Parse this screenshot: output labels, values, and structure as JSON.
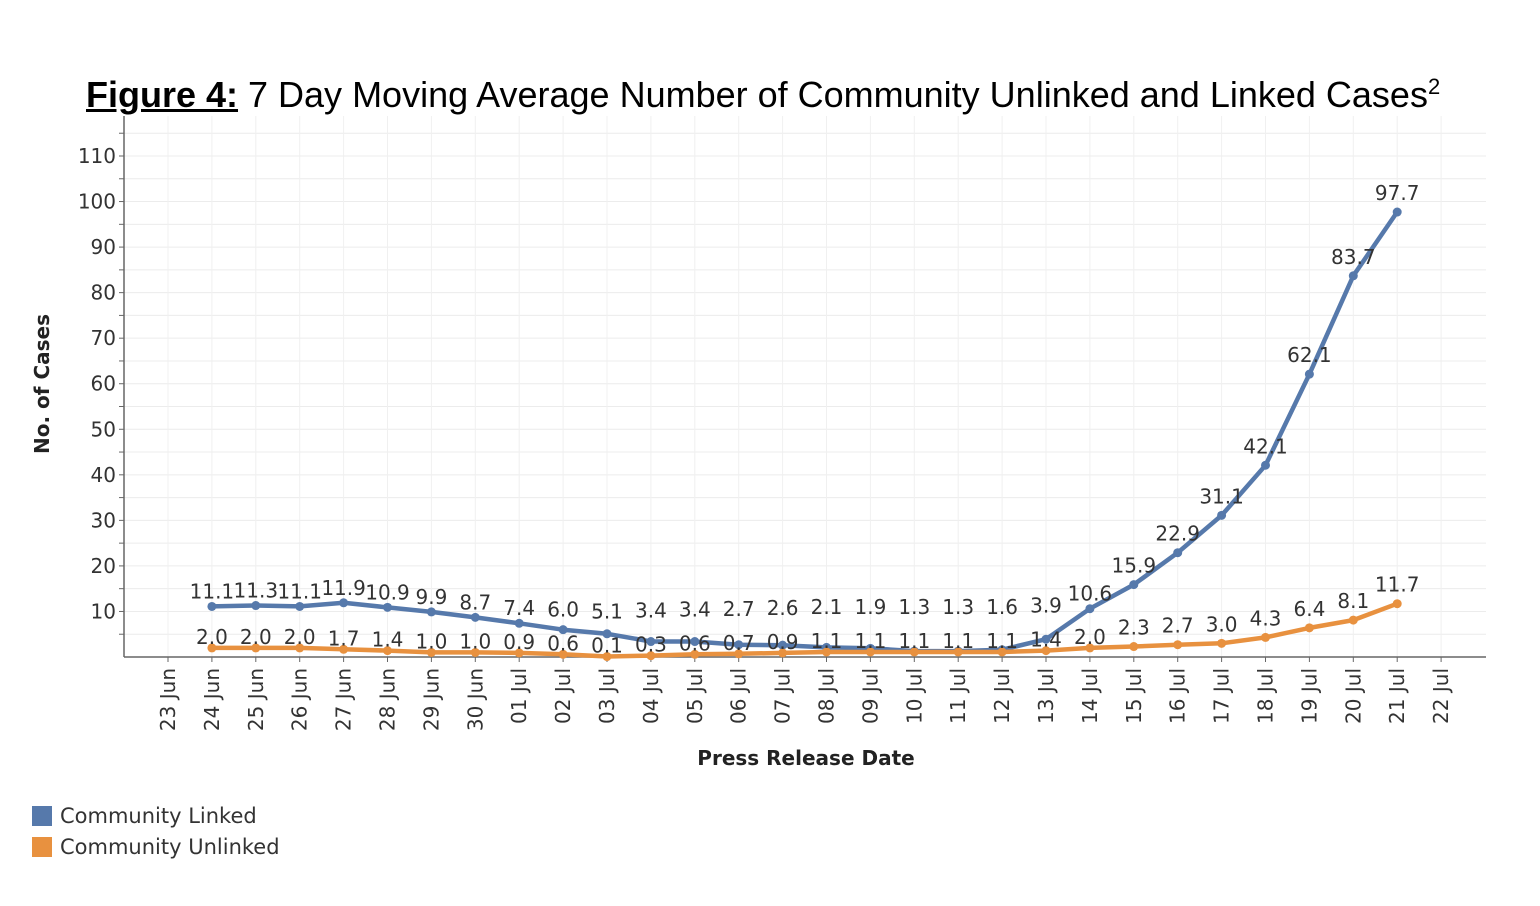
{
  "title": {
    "label": "Figure 4:",
    "text": " 7 Day Moving Average Number of Community Unlinked and Linked Cases",
    "superscript": "2"
  },
  "chart_data": {
    "type": "line",
    "xlabel": "Press Release Date",
    "ylabel": "No. of Cases",
    "ylim": [
      0,
      110
    ],
    "yticks": [
      10,
      20,
      30,
      40,
      50,
      60,
      70,
      80,
      90,
      100,
      110
    ],
    "grid": true,
    "legend_position": "bottom-left",
    "categories": [
      "23 Jun",
      "24 Jun",
      "25 Jun",
      "26 Jun",
      "27 Jun",
      "28 Jun",
      "29 Jun",
      "30 Jun",
      "01 Jul",
      "02 Jul",
      "03 Jul",
      "04 Jul",
      "05 Jul",
      "06 Jul",
      "07 Jul",
      "08 Jul",
      "09 Jul",
      "10 Jul",
      "11 Jul",
      "12 Jul",
      "13 Jul",
      "14 Jul",
      "15 Jul",
      "16 Jul",
      "17 Jul",
      "18 Jul",
      "19 Jul",
      "20 Jul",
      "21 Jul",
      "22 Jul"
    ],
    "series": [
      {
        "name": "Community Linked",
        "color": "#5679ab",
        "values": [
          null,
          11.1,
          11.3,
          11.1,
          11.9,
          10.9,
          9.9,
          8.7,
          7.4,
          6.0,
          5.1,
          3.4,
          3.4,
          2.7,
          2.6,
          2.1,
          1.9,
          1.3,
          1.3,
          1.6,
          3.9,
          10.6,
          15.9,
          22.9,
          31.1,
          42.1,
          62.1,
          83.7,
          97.7,
          null
        ]
      },
      {
        "name": "Community Unlinked",
        "color": "#e8913f",
        "values": [
          null,
          2.0,
          2.0,
          2.0,
          1.7,
          1.4,
          1.0,
          1.0,
          0.9,
          0.6,
          0.1,
          0.3,
          0.6,
          0.7,
          0.9,
          1.1,
          1.1,
          1.1,
          1.1,
          1.1,
          1.4,
          2.0,
          2.3,
          2.7,
          3.0,
          4.3,
          6.4,
          8.1,
          11.7,
          null
        ]
      }
    ]
  }
}
